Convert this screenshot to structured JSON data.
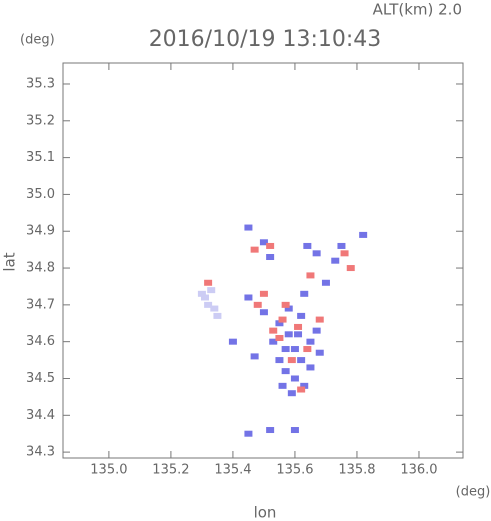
{
  "chart_data": {
    "type": "scatter",
    "title": "2016/10/19 13:10:43",
    "subtitle": "ALT(km) 2.0",
    "y_unit": "(deg)",
    "x_unit": "(deg)",
    "x_label": "lon",
    "y_label": "lat",
    "xlim": [
      134.852,
      136.142
    ],
    "ylim": [
      34.284,
      35.357
    ],
    "xticks": [
      {
        "value": 135,
        "label": "135.0"
      },
      {
        "value": 135.2,
        "label": "135.2"
      },
      {
        "value": 135.4,
        "label": "135.4"
      },
      {
        "value": 135.6,
        "label": "135.6"
      },
      {
        "value": 135.8,
        "label": "135.8"
      },
      {
        "value": 136,
        "label": "136.0"
      }
    ],
    "yticks": [
      34.3,
      34.4,
      34.5,
      34.6,
      34.7,
      34.8,
      34.9,
      {
        "value": 35,
        "label": "35.0"
      },
      35.1,
      35.2,
      35.3
    ],
    "series": [
      {
        "color": "#7373e6",
        "x": [
          135.55,
          135.58,
          135.6,
          135.62,
          135.57,
          135.6,
          135.63,
          135.56,
          135.65,
          135.67,
          135.53,
          135.5,
          135.45,
          135.47,
          135.58,
          135.62,
          135.65,
          135.68,
          135.55,
          135.61,
          135.59,
          135.57,
          135.52,
          135.5,
          135.45,
          135.64,
          135.67,
          135.73,
          135.82,
          135.7,
          135.75,
          135.52,
          135.6,
          135.45,
          135.4,
          135.63
        ],
        "y": [
          34.65,
          34.62,
          34.58,
          34.55,
          34.52,
          34.5,
          34.48,
          34.48,
          34.6,
          34.63,
          34.6,
          34.68,
          34.72,
          34.56,
          34.69,
          34.67,
          34.53,
          34.57,
          34.55,
          34.62,
          34.46,
          34.58,
          34.83,
          34.87,
          34.91,
          34.86,
          34.84,
          34.82,
          34.89,
          34.76,
          34.86,
          34.36,
          34.36,
          34.35,
          34.6,
          34.73
        ]
      },
      {
        "color": "#f07878",
        "x": [
          135.56,
          135.61,
          135.55,
          135.59,
          135.64,
          135.53,
          135.68,
          135.62,
          135.48,
          135.5,
          135.52,
          135.47,
          135.78,
          135.76,
          135.65,
          135.32,
          135.57
        ],
        "y": [
          34.66,
          34.64,
          34.61,
          34.55,
          34.58,
          34.63,
          34.66,
          34.47,
          34.7,
          34.73,
          34.86,
          34.85,
          34.8,
          34.84,
          34.78,
          34.76,
          34.7
        ]
      },
      {
        "color": "#ccccf4",
        "x": [
          135.31,
          135.32,
          135.34,
          135.35,
          135.3,
          135.33
        ],
        "y": [
          34.72,
          34.7,
          34.69,
          34.67,
          34.73,
          34.74
        ]
      }
    ]
  }
}
